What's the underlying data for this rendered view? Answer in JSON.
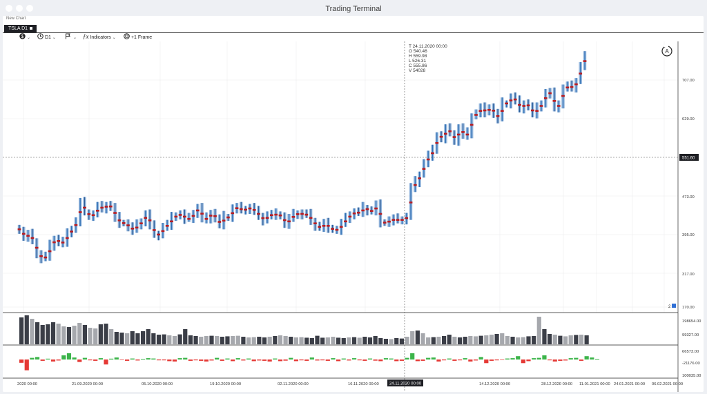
{
  "window": {
    "title": "Trading Terminal"
  },
  "document": {
    "title": "New Chart"
  },
  "tab": {
    "label": "TSLA D1"
  },
  "toolbar": {
    "symbol_icon": "dollar-circle-icon",
    "timeframe_label": "D1",
    "indicators_label": "Indicators",
    "frame_label": "+1 Frame"
  },
  "crosshair": {
    "t": "T 24.11.2020 00:00",
    "o": "O 540.46",
    "h": "H 559.98",
    "l": "L 526.31",
    "c": "C 555.86",
    "v": "V 54028",
    "price_label": "551.60",
    "date_label": "24.11.2020 00:00"
  },
  "auto_scale_label": "A",
  "price_axis": [
    "707.00",
    "629.00",
    "473.00",
    "395.00",
    "317.00",
    "170.00"
  ],
  "volume_axis": [
    "198654.00",
    "99327.00"
  ],
  "delta_axis": [
    "66573.00",
    "-21176.00",
    "100035.00"
  ],
  "time_axis": [
    "2020 00:00",
    "21.09.2020 00:00",
    "05.10.2020 00:00",
    "19.10.2020 00:00",
    "02.11.2020 00:00",
    "16.11.2020 00:00",
    "14.12.2020 00:00",
    "28.12.2020 00:00",
    "11.01.2021 00:00",
    "24.01.2021 00:00",
    "06.02.2021 00:00"
  ],
  "status_label": "2",
  "colors": {
    "up": "#2f6fb3",
    "down": "#b81c22",
    "poc": "#b81c22",
    "vol_dark": "#3b3e47",
    "vol_light": "#a6a8ad",
    "delta_up": "#3cb44a",
    "delta_down": "#e53935"
  },
  "chart_data": {
    "type": "candlestick-footprint",
    "symbol": "TSLA",
    "timeframe": "D1",
    "price_range": [
      170,
      760
    ],
    "closes": [
      404,
      392,
      396,
      383,
      357,
      349,
      352,
      374,
      388,
      379,
      382,
      397,
      408,
      423,
      460,
      441,
      434,
      437,
      452,
      449,
      456,
      450,
      430,
      420,
      419,
      411,
      406,
      415,
      423,
      437,
      413,
      398,
      395,
      412,
      416,
      430,
      435,
      437,
      428,
      428,
      440,
      450,
      427,
      429,
      440,
      427,
      417,
      432,
      430,
      449,
      450,
      445,
      448,
      450,
      442,
      434,
      425,
      435,
      436,
      437,
      433,
      418,
      428,
      436,
      439,
      437,
      436,
      424,
      414,
      410,
      418,
      410,
      406,
      406,
      418,
      428,
      437,
      441,
      440,
      450,
      445,
      443,
      455,
      421,
      420,
      425,
      427,
      425,
      427,
      432,
      490,
      502,
      517,
      540,
      555,
      565,
      596,
      590,
      608,
      600,
      585,
      610,
      595,
      600,
      634,
      640,
      650,
      642,
      652,
      639,
      630,
      660,
      660,
      672,
      664,
      650,
      660,
      652,
      640,
      650,
      660,
      681,
      680,
      650,
      660,
      690,
      694,
      692,
      705,
      735,
      755
    ],
    "volume": [
      195000,
      210000,
      185000,
      160000,
      140000,
      145000,
      160000,
      150000,
      130000,
      125000,
      135000,
      155000,
      140000,
      120000,
      115000,
      145000,
      150000,
      110000,
      90000,
      85000,
      80000,
      95000,
      80000,
      95000,
      110000,
      80000,
      70000,
      72000,
      65000,
      60000,
      72000,
      110000,
      65000,
      60000,
      55000,
      60000,
      62000,
      60000,
      55000,
      58000,
      60000,
      62000,
      55000,
      50000,
      52000,
      55000,
      50000,
      55000,
      60000,
      65000,
      60000,
      55000,
      50000,
      52000,
      48000,
      45000,
      62000,
      48000,
      50000,
      55000,
      48000,
      45000,
      50000,
      52000,
      48000,
      55000,
      50000,
      60000,
      45000,
      40000,
      38000,
      45000,
      42000,
      55000,
      95000,
      100000,
      80000,
      50000,
      52000,
      55000,
      60000,
      70000,
      55000,
      50000,
      55000,
      60000,
      58000,
      62000,
      65000,
      70000,
      75000,
      80000,
      60000,
      55000,
      50000,
      52000,
      58000,
      60000,
      200000,
      110000,
      75000,
      70000,
      62000,
      58000,
      65000,
      68000,
      70000,
      65000
    ],
    "delta": [
      -20000,
      -65000,
      10000,
      15000,
      -8000,
      5000,
      -12000,
      -6000,
      25000,
      38000,
      12000,
      -15000,
      10000,
      -5000,
      -8000,
      8000,
      -30000,
      5000,
      12000,
      -3000,
      -8000,
      6000,
      -6000,
      4000,
      8000,
      6000,
      -5000,
      -5000,
      -10000,
      -12000,
      8000,
      10000,
      -8000,
      -5000,
      -8000,
      -12000,
      -6000,
      10000,
      -8000,
      6000,
      -10000,
      8000,
      -6000,
      6000,
      -10000,
      -6000,
      -8000,
      -12000,
      6000,
      -10000,
      -7000,
      10000,
      -10000,
      -5000,
      -8000,
      12000,
      -6000,
      -5000,
      -8000,
      8000,
      -10000,
      6000,
      -6000,
      8000,
      -5000,
      -8000,
      6000,
      -7000,
      -10000,
      8000,
      6000,
      -10000,
      -8000,
      10000,
      38000,
      -10000,
      -8000,
      10000,
      12000,
      -12000,
      -5000,
      6000,
      -8000,
      -5000,
      8000,
      -12000,
      -6000,
      15000,
      -22000,
      -8000,
      -5000,
      -3000,
      6000,
      8000,
      20000,
      -22000,
      -10000,
      8000,
      10000,
      25000,
      -5000,
      -12000,
      -8000,
      -6000,
      8000,
      10000,
      -8000,
      20000,
      12000,
      4000
    ]
  }
}
